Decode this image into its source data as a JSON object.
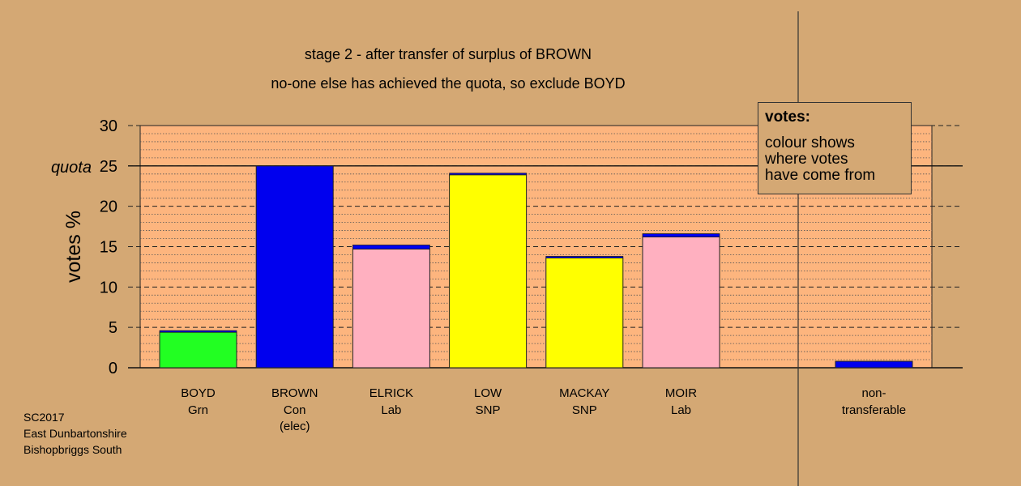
{
  "chart_data": {
    "type": "bar",
    "title": "stage 2 - after transfer of surplus of BROWN",
    "subtitle": "no-one else has achieved the quota, so exclude BOYD",
    "ylabel": "votes %",
    "ylim": [
      0,
      30
    ],
    "yticks": [
      0,
      5,
      10,
      15,
      20,
      25,
      30
    ],
    "quota": 25,
    "quota_label": "quota",
    "candidates": [
      {
        "name": "BOYD",
        "party": "Grn",
        "note": "",
        "base": 4.4,
        "base_color": "#22ff22",
        "transfer": 0.2
      },
      {
        "name": "BROWN",
        "party": "Con",
        "note": "(elec)",
        "base": 25.0,
        "base_color": "#0000ee",
        "transfer": 0
      },
      {
        "name": "ELRICK",
        "party": "Lab",
        "note": "",
        "base": 14.7,
        "base_color": "#ffb0c0",
        "transfer": 0.5
      },
      {
        "name": "LOW",
        "party": "SNP",
        "note": "",
        "base": 23.9,
        "base_color": "#ffff00",
        "transfer": 0.2
      },
      {
        "name": "MACKAY",
        "party": "SNP",
        "note": "",
        "base": 13.6,
        "base_color": "#ffff00",
        "transfer": 0.2
      },
      {
        "name": "MOIR",
        "party": "Lab",
        "note": "",
        "base": 16.2,
        "base_color": "#ffb0c0",
        "transfer": 0.4
      }
    ],
    "transfer_color": "#0000ee",
    "nontransferable": {
      "label1": "non-",
      "label2": "transferable",
      "value": 0.8,
      "color": "#0000ee"
    },
    "grid": true
  },
  "legend": {
    "title": "votes:",
    "lines": [
      "colour shows",
      "where votes",
      "have come from"
    ]
  },
  "footer": {
    "line1": "SC2017",
    "line2": "East Dunbartonshire",
    "line3": "Bishopbriggs South"
  }
}
